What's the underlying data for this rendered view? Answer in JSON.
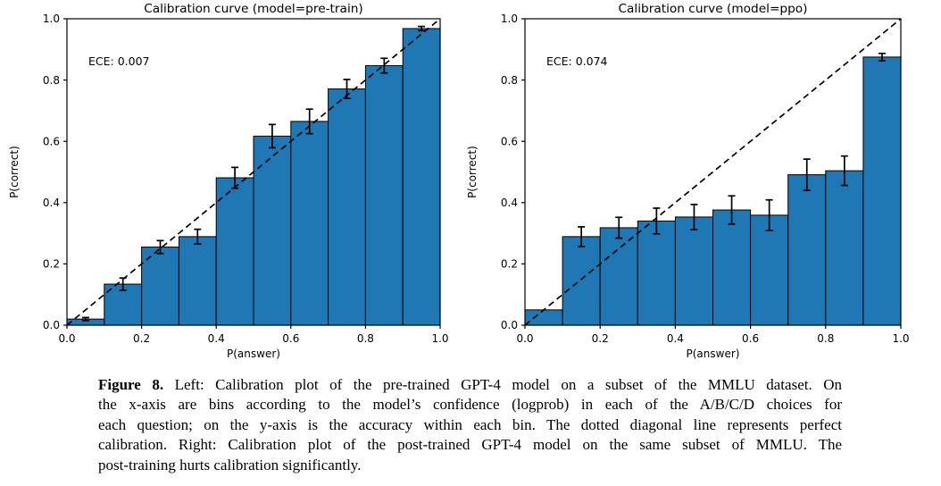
{
  "chart_data": [
    {
      "id": "pretrain",
      "type": "bar",
      "title": "Calibration curve (model=pre-train)",
      "annotation": "ECE: 0.007",
      "xlabel": "P(answer)",
      "ylabel": "P(correct)",
      "xlim": [
        0.0,
        1.0
      ],
      "ylim": [
        0.0,
        1.0
      ],
      "x_ticks": [
        0.0,
        0.2,
        0.4,
        0.6,
        0.8,
        1.0
      ],
      "y_ticks": [
        0.0,
        0.2,
        0.4,
        0.6,
        0.8,
        1.0
      ],
      "bin_edges": [
        0.0,
        0.1,
        0.2,
        0.3,
        0.4,
        0.5,
        0.6,
        0.7,
        0.8,
        0.9,
        1.0
      ],
      "values": [
        0.02,
        0.134,
        0.255,
        0.289,
        0.481,
        0.617,
        0.665,
        0.771,
        0.847,
        0.968
      ],
      "errors": [
        0.005,
        0.02,
        0.021,
        0.024,
        0.034,
        0.038,
        0.04,
        0.031,
        0.024,
        0.007
      ],
      "diagonal": true,
      "grid": false,
      "bar_color": "#1f77b4",
      "bar_edge_color": "#000000",
      "diagonal_color": "#000000"
    },
    {
      "id": "ppo",
      "type": "bar",
      "title": "Calibration curve (model=ppo)",
      "annotation": "ECE: 0.074",
      "xlabel": "P(answer)",
      "ylabel": "P(correct)",
      "xlim": [
        0.0,
        1.0
      ],
      "ylim": [
        0.0,
        1.0
      ],
      "x_ticks": [
        0.0,
        0.2,
        0.4,
        0.6,
        0.8,
        1.0
      ],
      "y_ticks": [
        0.0,
        0.2,
        0.4,
        0.6,
        0.8,
        1.0
      ],
      "bin_edges": [
        0.0,
        0.1,
        0.2,
        0.3,
        0.4,
        0.5,
        0.6,
        0.7,
        0.8,
        0.9,
        1.0
      ],
      "values": [
        0.05,
        0.289,
        0.318,
        0.34,
        0.353,
        0.376,
        0.359,
        0.491,
        0.504,
        0.875
      ],
      "errors": [
        0,
        0.032,
        0.034,
        0.042,
        0.041,
        0.046,
        0.05,
        0.051,
        0.048,
        0.012
      ],
      "diagonal": true,
      "grid": false,
      "bar_color": "#1f77b4",
      "bar_edge_color": "#000000",
      "diagonal_color": "#000000"
    }
  ],
  "caption": {
    "label": "Figure 8.",
    "lines": [
      "Left: Calibration plot of the pre-trained GPT-4 model on a subset of the MMLU dataset. On",
      "the x-axis are bins according to the model’s confidence (logprob) in each of the A/B/C/D choices for",
      "each question; on the y-axis is the accuracy within each bin. The dotted diagonal line represents perfect",
      "calibration. Right: Calibration plot of the post-trained GPT-4 model on the same subset of MMLU. The",
      "post-training hurts calibration significantly."
    ]
  }
}
